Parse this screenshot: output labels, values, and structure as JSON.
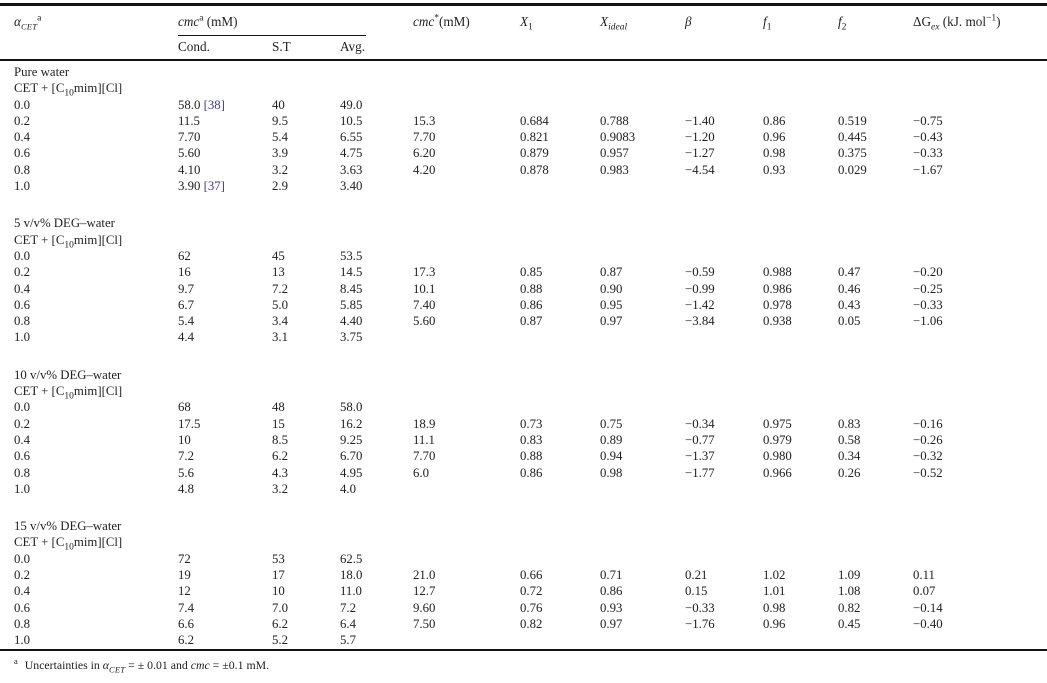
{
  "colors": {
    "text": "#212121",
    "citation": "#3c3c8e",
    "rule": "#141414",
    "background": "#ffffff"
  },
  "header": {
    "alpha": {
      "base": "α",
      "sub": "CET",
      "sup": "a"
    },
    "cmc_group": {
      "base": "cmc",
      "sup": "a",
      "unit": " (mM)"
    },
    "sub_cond": "Cond.",
    "sub_st": "S.T",
    "sub_avg": "Avg.",
    "cmc_star": {
      "base": "cmc",
      "sup": "*",
      "unit": "(mM)"
    },
    "x1": {
      "base": "X",
      "sub": "1"
    },
    "xideal": {
      "base": "X",
      "sub": "ideal"
    },
    "beta": "β",
    "f1": {
      "base": "f",
      "sub": "1"
    },
    "f2": {
      "base": "f",
      "sub": "2"
    },
    "dgex": {
      "base": "ΔG",
      "sub": "ex",
      "unit": " (kJ. mol",
      "sup": "−1",
      "close": ")"
    }
  },
  "sections": [
    {
      "solvent": "Pure water",
      "system": {
        "prefix": "CET + [C",
        "sub": "10",
        "suffix": "mim][Cl]"
      },
      "rows": [
        {
          "alpha": "0.0",
          "cond": "58.0",
          "cond_ref": "[38]",
          "st": "40",
          "avg": "49.0",
          "cmc_star": "",
          "x1": "",
          "xideal": "",
          "beta": "",
          "f1": "",
          "f2": "",
          "dgex": ""
        },
        {
          "alpha": "0.2",
          "cond": "11.5",
          "cond_ref": "",
          "st": "9.5",
          "avg": "10.5",
          "cmc_star": "15.3",
          "x1": "0.684",
          "xideal": "0.788",
          "beta": "−1.40",
          "f1": "0.86",
          "f2": "0.519",
          "dgex": "−0.75"
        },
        {
          "alpha": "0.4",
          "cond": "7.70",
          "cond_ref": "",
          "st": "5.4",
          "avg": "6.55",
          "cmc_star": "7.70",
          "x1": "0.821",
          "xideal": "0.9083",
          "beta": "−1.20",
          "f1": "0.96",
          "f2": "0.445",
          "dgex": "−0.43"
        },
        {
          "alpha": "0.6",
          "cond": "5.60",
          "cond_ref": "",
          "st": "3.9",
          "avg": "4.75",
          "cmc_star": "6.20",
          "x1": "0.879",
          "xideal": "0.957",
          "beta": "−1.27",
          "f1": "0.98",
          "f2": "0.375",
          "dgex": "−0.33"
        },
        {
          "alpha": "0.8",
          "cond": "4.10",
          "cond_ref": "",
          "st": "3.2",
          "avg": "3.63",
          "cmc_star": "4.20",
          "x1": "0.878",
          "xideal": "0.983",
          "beta": "−4.54",
          "f1": "0.93",
          "f2": "0.029",
          "dgex": "−1.67"
        },
        {
          "alpha": "1.0",
          "cond": "3.90",
          "cond_ref": "[37]",
          "st": "2.9",
          "avg": "3.40",
          "cmc_star": "",
          "x1": "",
          "xideal": "",
          "beta": "",
          "f1": "",
          "f2": "",
          "dgex": ""
        }
      ]
    },
    {
      "solvent": "5 v/v% DEG–water",
      "system": {
        "prefix": "CET + [C",
        "sub": "10",
        "suffix": "mim][Cl]"
      },
      "rows": [
        {
          "alpha": "0.0",
          "cond": "62",
          "cond_ref": "",
          "st": "45",
          "avg": "53.5",
          "cmc_star": "",
          "x1": "",
          "xideal": "",
          "beta": "",
          "f1": "",
          "f2": "",
          "dgex": ""
        },
        {
          "alpha": "0.2",
          "cond": "16",
          "cond_ref": "",
          "st": "13",
          "avg": "14.5",
          "cmc_star": "17.3",
          "x1": "0.85",
          "xideal": "0.87",
          "beta": "−0.59",
          "f1": "0.988",
          "f2": "0.47",
          "dgex": "−0.20"
        },
        {
          "alpha": "0.4",
          "cond": "9.7",
          "cond_ref": "",
          "st": "7.2",
          "avg": "8.45",
          "cmc_star": "10.1",
          "x1": "0.88",
          "xideal": "0.90",
          "beta": "−0.99",
          "f1": "0.986",
          "f2": "0.46",
          "dgex": "−0.25"
        },
        {
          "alpha": "0.6",
          "cond": "6.7",
          "cond_ref": "",
          "st": "5.0",
          "avg": "5.85",
          "cmc_star": "7.40",
          "x1": "0.86",
          "xideal": "0.95",
          "beta": "−1.42",
          "f1": "0.978",
          "f2": "0.43",
          "dgex": "−0.33"
        },
        {
          "alpha": "0.8",
          "cond": "5.4",
          "cond_ref": "",
          "st": "3.4",
          "avg": "4.40",
          "cmc_star": "5.60",
          "x1": "0.87",
          "xideal": "0.97",
          "beta": "−3.84",
          "f1": "0.938",
          "f2": "0.05",
          "dgex": "−1.06"
        },
        {
          "alpha": "1.0",
          "cond": "4.4",
          "cond_ref": "",
          "st": "3.1",
          "avg": "3.75",
          "cmc_star": "",
          "x1": "",
          "xideal": "",
          "beta": "",
          "f1": "",
          "f2": "",
          "dgex": ""
        }
      ]
    },
    {
      "solvent": "10 v/v% DEG–water",
      "system": {
        "prefix": "CET + [C",
        "sub": "10",
        "suffix": "mim][Cl]"
      },
      "rows": [
        {
          "alpha": "0.0",
          "cond": "68",
          "cond_ref": "",
          "st": "48",
          "avg": "58.0",
          "cmc_star": "",
          "x1": "",
          "xideal": "",
          "beta": "",
          "f1": "",
          "f2": "",
          "dgex": ""
        },
        {
          "alpha": "0.2",
          "cond": "17.5",
          "cond_ref": "",
          "st": "15",
          "avg": "16.2",
          "cmc_star": "18.9",
          "x1": "0.73",
          "xideal": "0.75",
          "beta": "−0.34",
          "f1": "0.975",
          "f2": "0.83",
          "dgex": "−0.16"
        },
        {
          "alpha": "0.4",
          "cond": "10",
          "cond_ref": "",
          "st": "8.5",
          "avg": "9.25",
          "cmc_star": "11.1",
          "x1": "0.83",
          "xideal": "0.89",
          "beta": "−0.77",
          "f1": "0.979",
          "f2": "0.58",
          "dgex": "−0.26"
        },
        {
          "alpha": "0.6",
          "cond": "7.2",
          "cond_ref": "",
          "st": "6.2",
          "avg": "6.70",
          "cmc_star": "7.70",
          "x1": "0.88",
          "xideal": "0.94",
          "beta": "−1.37",
          "f1": "0.980",
          "f2": "0.34",
          "dgex": "−0.32"
        },
        {
          "alpha": "0.8",
          "cond": "5.6",
          "cond_ref": "",
          "st": "4.3",
          "avg": "4.95",
          "cmc_star": "6.0",
          "x1": "0.86",
          "xideal": "0.98",
          "beta": "−1.77",
          "f1": "0.966",
          "f2": "0.26",
          "dgex": "−0.52"
        },
        {
          "alpha": "1.0",
          "cond": "4.8",
          "cond_ref": "",
          "st": "3.2",
          "avg": "4.0",
          "cmc_star": "",
          "x1": "",
          "xideal": "",
          "beta": "",
          "f1": "",
          "f2": "",
          "dgex": ""
        }
      ]
    },
    {
      "solvent": "15 v/v% DEG–water",
      "system": {
        "prefix": "CET + [C",
        "sub": "10",
        "suffix": "mim][Cl]"
      },
      "rows": [
        {
          "alpha": "0.0",
          "cond": "72",
          "cond_ref": "",
          "st": "53",
          "avg": "62.5",
          "cmc_star": "",
          "x1": "",
          "xideal": "",
          "beta": "",
          "f1": "",
          "f2": "",
          "dgex": ""
        },
        {
          "alpha": "0.2",
          "cond": "19",
          "cond_ref": "",
          "st": "17",
          "avg": "18.0",
          "cmc_star": "21.0",
          "x1": "0.66",
          "xideal": "0.71",
          "beta": "0.21",
          "f1": "1.02",
          "f2": "1.09",
          "dgex": "0.11"
        },
        {
          "alpha": "0.4",
          "cond": "12",
          "cond_ref": "",
          "st": "10",
          "avg": "11.0",
          "cmc_star": "12.7",
          "x1": "0.72",
          "xideal": "0.86",
          "beta": "0.15",
          "f1": "1.01",
          "f2": "1.08",
          "dgex": "0.07"
        },
        {
          "alpha": "0.6",
          "cond": "7.4",
          "cond_ref": "",
          "st": "7.0",
          "avg": "7.2",
          "cmc_star": "9.60",
          "x1": "0.76",
          "xideal": "0.93",
          "beta": "−0.33",
          "f1": "0.98",
          "f2": "0.82",
          "dgex": "−0.14"
        },
        {
          "alpha": "0.8",
          "cond": "6.6",
          "cond_ref": "",
          "st": "6.2",
          "avg": "6.4",
          "cmc_star": "7.50",
          "x1": "0.82",
          "xideal": "0.97",
          "beta": "−1.76",
          "f1": "0.96",
          "f2": "0.45",
          "dgex": "−0.40"
        },
        {
          "alpha": "1.0",
          "cond": "6.2",
          "cond_ref": "",
          "st": "5.2",
          "avg": "5.7",
          "cmc_star": "",
          "x1": "",
          "xideal": "",
          "beta": "",
          "f1": "",
          "f2": "",
          "dgex": ""
        }
      ]
    }
  ],
  "footnote": {
    "sup": "a",
    "pre": "Uncertainties in ",
    "alpha": "α",
    "alpha_sub": "CET",
    "mid": " = ± 0.01 and ",
    "cmc": "cmc",
    "post": " = ±0.1 mM."
  }
}
